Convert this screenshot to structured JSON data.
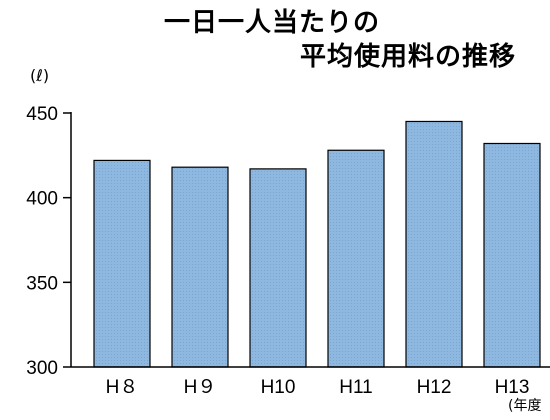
{
  "chart_data": {
    "type": "bar",
    "title_line1": "一日一人当たりの",
    "title_line2": "平均使用料の推移",
    "ylabel": "(ℓ)",
    "xlabel": "(年度",
    "categories": [
      "H８",
      "H９",
      "H10",
      "H11",
      "H12",
      "H13"
    ],
    "values": [
      422,
      418,
      417,
      428,
      445,
      432
    ],
    "ylim": [
      300,
      450
    ],
    "yticks": [
      300,
      350,
      400,
      450
    ],
    "grid": false,
    "legend": "none",
    "bar_color": "#8fb8e0",
    "bar_edge_color": "#000000"
  }
}
